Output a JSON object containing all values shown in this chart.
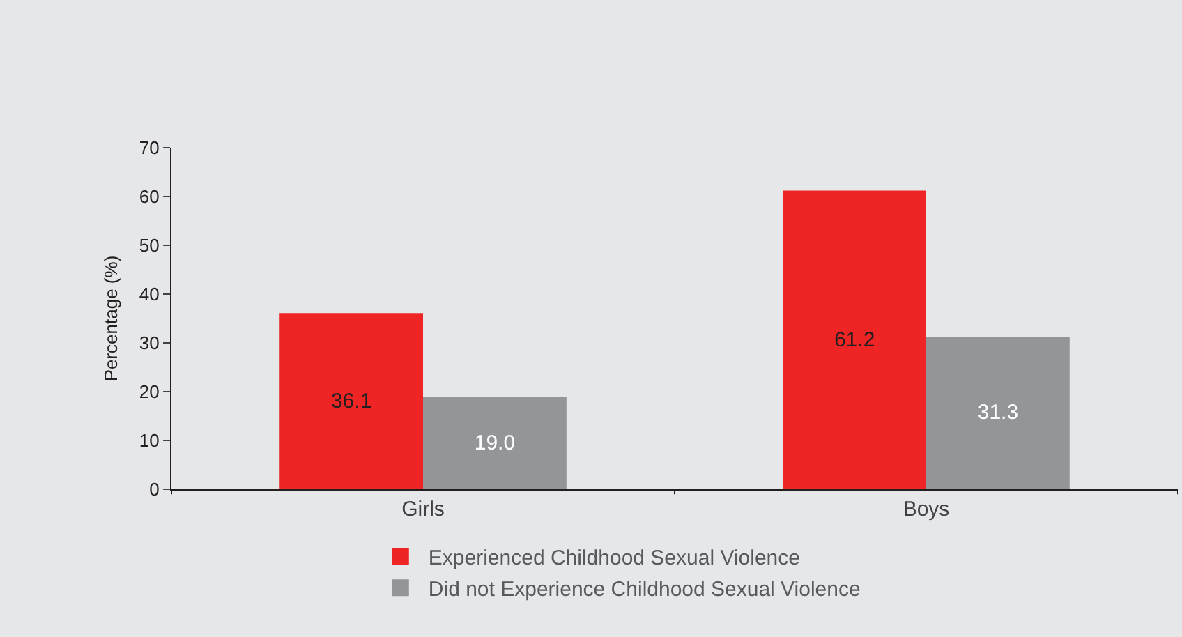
{
  "chart_data": {
    "type": "bar",
    "ylabel": "Percentage (%)",
    "categories": [
      "Girls",
      "Boys"
    ],
    "series": [
      {
        "name": "Experienced Childhood Sexual Violence",
        "color": "#ee2524",
        "values": [
          36.1,
          61.2
        ],
        "value_labels": [
          "36.1",
          "61.2"
        ]
      },
      {
        "name": "Did not Experience Childhood Sexual Violence",
        "color": "#939598",
        "values": [
          19.0,
          31.3
        ],
        "value_labels": [
          "19.0",
          "31.3"
        ]
      }
    ],
    "ylim": [
      0,
      70
    ],
    "yticks": [
      0,
      10,
      20,
      30,
      40,
      50,
      60,
      70
    ],
    "grid": false,
    "legend": "bottom"
  }
}
